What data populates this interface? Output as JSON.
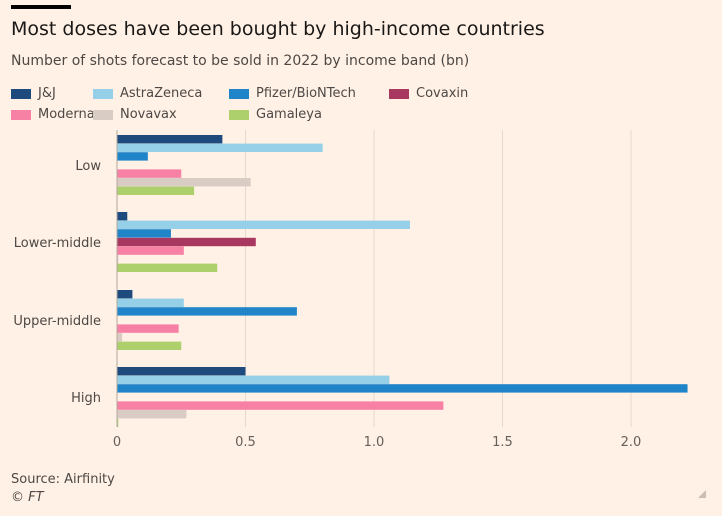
{
  "header": {
    "title": "Most doses have been bought by high-income countries",
    "subtitle": "Number of shots forecast to be sold in 2022 by income band (bn)"
  },
  "footer": {
    "source": "Source: Airfinity",
    "copyright": "© FT"
  },
  "chart_data": {
    "type": "bar",
    "orientation": "horizontal",
    "title": "Most doses have been bought by high-income countries",
    "subtitle": "Number of shots forecast to be sold in 2022 by income band (bn)",
    "xlabel": "",
    "ylabel": "",
    "xlim": [
      0,
      2.25
    ],
    "xticks": [
      0,
      0.5,
      1.0,
      1.5,
      2.0
    ],
    "xtick_labels": [
      "0",
      "0.5",
      "1.0",
      "1.5",
      "2.0"
    ],
    "grid": true,
    "legend_position": "top",
    "categories": [
      "Low",
      "Lower-middle",
      "Upper-middle",
      "High"
    ],
    "series": [
      {
        "name": "J&J",
        "color": "#1e4a7e",
        "values": [
          0.41,
          0.04,
          0.06,
          0.5
        ]
      },
      {
        "name": "AstraZeneca",
        "color": "#96cfe8",
        "values": [
          0.8,
          1.14,
          0.26,
          1.06
        ]
      },
      {
        "name": "Pfizer/BioNTech",
        "color": "#2085c8",
        "values": [
          0.12,
          0.21,
          0.7,
          2.22
        ]
      },
      {
        "name": "Covaxin",
        "color": "#a8385f",
        "values": [
          0.0,
          0.54,
          0.0,
          0.0
        ]
      },
      {
        "name": "Moderna",
        "color": "#f780a5",
        "values": [
          0.25,
          0.26,
          0.24,
          1.27
        ]
      },
      {
        "name": "Novavax",
        "color": "#d8ccc5",
        "values": [
          0.52,
          0.005,
          0.02,
          0.27
        ]
      },
      {
        "name": "Gamaleya",
        "color": "#add06c",
        "values": [
          0.3,
          0.39,
          0.25,
          0.005
        ]
      }
    ]
  }
}
